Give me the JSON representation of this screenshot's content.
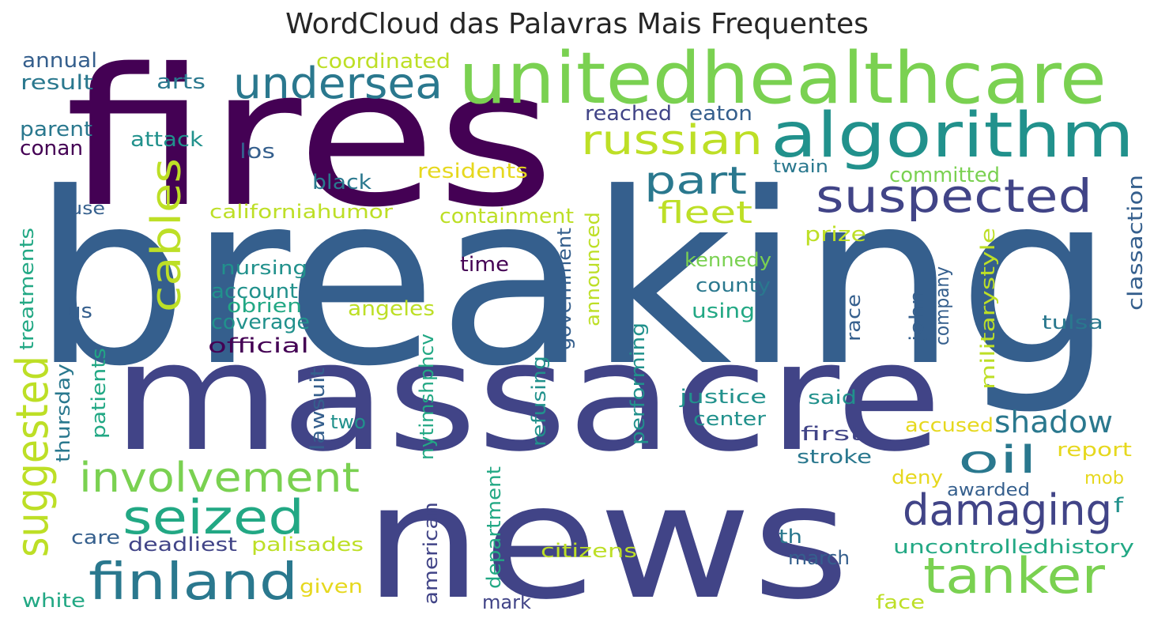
{
  "title": "WordCloud das Palavras Mais Frequentes",
  "palette": {
    "purple": "#440154",
    "indigo": "#414487",
    "blue": "#355f8d",
    "steel": "#2a788e",
    "teal": "#21918c",
    "green": "#22a884",
    "lime": "#7ad151",
    "yellowgreen": "#bddf26",
    "yellow": "#e6d81e"
  },
  "words": [
    {
      "text": "breaking",
      "color": "blue"
    },
    {
      "text": "fires",
      "color": "purple"
    },
    {
      "text": "massacre",
      "color": "indigo"
    },
    {
      "text": "news",
      "color": "indigo"
    },
    {
      "text": "unitedhealthcare",
      "color": "lime"
    },
    {
      "text": "algorithm",
      "color": "teal"
    },
    {
      "text": "undersea",
      "color": "steel"
    },
    {
      "text": "russian",
      "color": "yellowgreen"
    },
    {
      "text": "suspected",
      "color": "indigo"
    },
    {
      "text": "part",
      "color": "steel"
    },
    {
      "text": "cables",
      "color": "yellowgreen"
    },
    {
      "text": "fleet",
      "color": "yellowgreen"
    },
    {
      "text": "involvement",
      "color": "lime"
    },
    {
      "text": "suggested",
      "color": "yellowgreen"
    },
    {
      "text": "seized",
      "color": "green"
    },
    {
      "text": "finland",
      "color": "steel"
    },
    {
      "text": "oil",
      "color": "steel"
    },
    {
      "text": "shadow",
      "color": "steel"
    },
    {
      "text": "damaging",
      "color": "indigo"
    },
    {
      "text": "tanker",
      "color": "lime"
    },
    {
      "text": "annual",
      "color": "blue"
    },
    {
      "text": "result",
      "color": "steel"
    },
    {
      "text": "arts",
      "color": "steel"
    },
    {
      "text": "coordinated",
      "color": "yellowgreen"
    },
    {
      "text": "reached",
      "color": "indigo"
    },
    {
      "text": "eaton",
      "color": "blue"
    },
    {
      "text": "parent",
      "color": "steel"
    },
    {
      "text": "conan",
      "color": "purple"
    },
    {
      "text": "attack",
      "color": "teal"
    },
    {
      "text": "los",
      "color": "blue"
    },
    {
      "text": "residents",
      "color": "yellow"
    },
    {
      "text": "twain",
      "color": "steel"
    },
    {
      "text": "committed",
      "color": "lime"
    },
    {
      "text": "black",
      "color": "steel"
    },
    {
      "text": "classaction",
      "color": "blue"
    },
    {
      "text": "use",
      "color": "blue"
    },
    {
      "text": "californiahumor",
      "color": "yellowgreen"
    },
    {
      "text": "containment",
      "color": "yellowgreen"
    },
    {
      "text": "prize",
      "color": "yellowgreen"
    },
    {
      "text": "treatments",
      "color": "green"
    },
    {
      "text": "nursing",
      "color": "teal"
    },
    {
      "text": "time",
      "color": "purple"
    },
    {
      "text": "kennedy",
      "color": "lime"
    },
    {
      "text": "militarystyle",
      "color": "yellowgreen"
    },
    {
      "text": "account",
      "color": "teal"
    },
    {
      "text": "obrien",
      "color": "green"
    },
    {
      "text": "county",
      "color": "steel"
    },
    {
      "text": "government",
      "color": "blue"
    },
    {
      "text": "announced",
      "color": "yellowgreen"
    },
    {
      "text": "company",
      "color": "blue"
    },
    {
      "text": "us",
      "color": "blue"
    },
    {
      "text": "angeles",
      "color": "yellowgreen"
    },
    {
      "text": "using",
      "color": "green"
    },
    {
      "text": "coverage",
      "color": "teal"
    },
    {
      "text": "john",
      "color": "blue"
    },
    {
      "text": "race",
      "color": "blue"
    },
    {
      "text": "tulsa",
      "color": "steel"
    },
    {
      "text": "official",
      "color": "purple"
    },
    {
      "text": "nytimshphcv",
      "color": "green"
    },
    {
      "text": "performing",
      "color": "teal"
    },
    {
      "text": "thursday",
      "color": "steel"
    },
    {
      "text": "justice",
      "color": "teal"
    },
    {
      "text": "said",
      "color": "teal"
    },
    {
      "text": "patients",
      "color": "green"
    },
    {
      "text": "lawsuit",
      "color": "blue"
    },
    {
      "text": "refusing",
      "color": "teal"
    },
    {
      "text": "center",
      "color": "teal"
    },
    {
      "text": "two",
      "color": "teal"
    },
    {
      "text": "accused",
      "color": "yellow"
    },
    {
      "text": "first",
      "color": "indigo"
    },
    {
      "text": "report",
      "color": "yellow"
    },
    {
      "text": "stroke",
      "color": "steel"
    },
    {
      "text": "deny",
      "color": "yellow"
    },
    {
      "text": "mob",
      "color": "yellow"
    },
    {
      "text": "awarded",
      "color": "blue"
    },
    {
      "text": "department",
      "color": "green"
    },
    {
      "text": "f",
      "color": "teal"
    },
    {
      "text": "care",
      "color": "blue"
    },
    {
      "text": "deadliest",
      "color": "indigo"
    },
    {
      "text": "palisades",
      "color": "yellowgreen"
    },
    {
      "text": "american",
      "color": "indigo"
    },
    {
      "text": "th",
      "color": "steel"
    },
    {
      "text": "citizens",
      "color": "yellowgreen"
    },
    {
      "text": "uncontrolledhistory",
      "color": "green"
    },
    {
      "text": "march",
      "color": "blue"
    },
    {
      "text": "given",
      "color": "yellow"
    },
    {
      "text": "white",
      "color": "green"
    },
    {
      "text": "mark",
      "color": "indigo"
    },
    {
      "text": "face",
      "color": "yellowgreen"
    }
  ]
}
